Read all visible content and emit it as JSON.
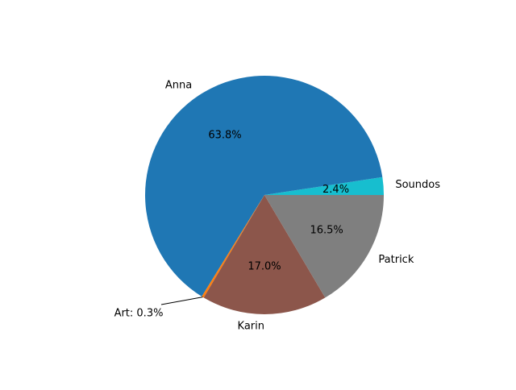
{
  "chart_data": {
    "type": "pie",
    "title": "",
    "start_angle_deg": 0,
    "direction": "counterclockwise",
    "slices": [
      {
        "label": "Soundos",
        "value": 2.4,
        "pct_label": "2.4%",
        "color": "#17becf"
      },
      {
        "label": "Anna",
        "value": 63.8,
        "pct_label": "63.8%",
        "color": "#1f77b4"
      },
      {
        "label": "Art",
        "value": 0.3,
        "annotation": "Art: 0.3%",
        "color": "#ff7f0e"
      },
      {
        "label": "Karin",
        "value": 17.0,
        "pct_label": "17.0%",
        "color": "#8c564b"
      },
      {
        "label": "Patrick",
        "value": 16.5,
        "pct_label": "16.5%",
        "color": "#7f7f7f"
      }
    ]
  }
}
